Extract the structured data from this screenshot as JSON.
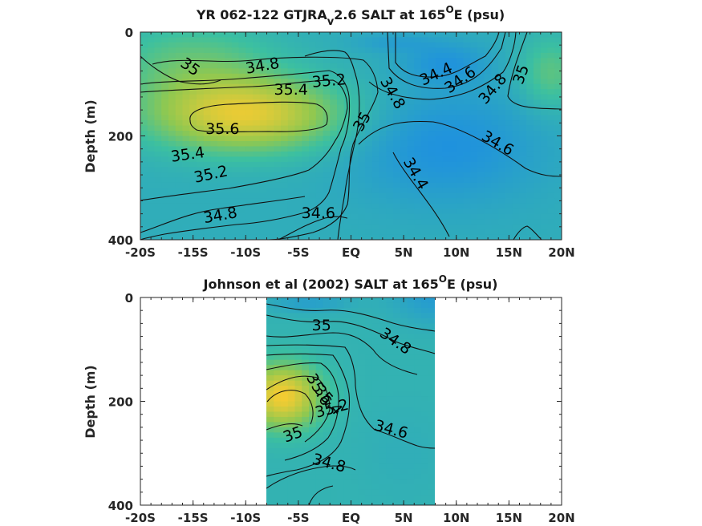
{
  "colors": {
    "fresh": "#1E90E0",
    "mid": "#3CC0A0",
    "salty": "#F8CC30",
    "line": "#111111",
    "frame": "#262626"
  },
  "chart_data": [
    {
      "type": "contour",
      "title_main": "YR 062-122 GTJRA",
      "title_sub": "v",
      "title_rest": "2.6 SALT at 165",
      "title_sup": "O",
      "title_end": "E (psu)",
      "ylabel": "Depth (m)",
      "xlim": [
        -20,
        20
      ],
      "ylim": [
        0,
        400
      ],
      "xticks": [
        {
          "v": -20,
          "label": "-20S"
        },
        {
          "v": -15,
          "label": "-15S"
        },
        {
          "v": -10,
          "label": "-10S"
        },
        {
          "v": -5,
          "label": "-5S"
        },
        {
          "v": 0,
          "label": "EQ"
        },
        {
          "v": 5,
          "label": "5N"
        },
        {
          "v": 10,
          "label": "10N"
        },
        {
          "v": 15,
          "label": "15N"
        },
        {
          "v": 20,
          "label": "20N"
        }
      ],
      "yticks": [
        {
          "v": 0,
          "label": "0"
        },
        {
          "v": 200,
          "label": "200"
        },
        {
          "v": 400,
          "label": "400"
        }
      ],
      "data_extent_x": [
        -20,
        20
      ],
      "field_range": [
        34.3,
        35.7
      ],
      "contour_levels": [
        34.4,
        34.6,
        34.8,
        35,
        35.2,
        35.4,
        35.6
      ],
      "contour_labels": [
        {
          "text": "35",
          "x": -15.3,
          "y": 68,
          "rot": 35
        },
        {
          "text": "34.8",
          "x": -8.4,
          "y": 66,
          "rot": -10
        },
        {
          "text": "35.4",
          "x": -5.7,
          "y": 112,
          "rot": 0
        },
        {
          "text": "35.2",
          "x": -2.1,
          "y": 95,
          "rot": -5
        },
        {
          "text": "34.8",
          "x": 3.9,
          "y": 118,
          "rot": 60
        },
        {
          "text": "35",
          "x": 1.1,
          "y": 173,
          "rot": -60
        },
        {
          "text": "34.4",
          "x": 8.1,
          "y": 82,
          "rot": -25
        },
        {
          "text": "34.6",
          "x": 10.4,
          "y": 93,
          "rot": -35
        },
        {
          "text": "34.8",
          "x": 13.5,
          "y": 110,
          "rot": -50
        },
        {
          "text": "35",
          "x": 16.2,
          "y": 82,
          "rot": -70
        },
        {
          "text": "35.6",
          "x": -12.2,
          "y": 188,
          "rot": 0
        },
        {
          "text": "34.6",
          "x": 13.9,
          "y": 215,
          "rot": 30
        },
        {
          "text": "35.4",
          "x": -15.5,
          "y": 237,
          "rot": -8
        },
        {
          "text": "35.2",
          "x": -13.3,
          "y": 275,
          "rot": -12
        },
        {
          "text": "34.4",
          "x": 6.1,
          "y": 273,
          "rot": 60
        },
        {
          "text": "34.8",
          "x": -12.4,
          "y": 354,
          "rot": -10
        },
        {
          "text": "34.6",
          "x": -3.1,
          "y": 350,
          "rot": 0
        }
      ]
    },
    {
      "type": "contour",
      "title_main": "Johnson et al (2002) SALT at 165",
      "title_sup": "O",
      "title_end": "E (psu)",
      "ylabel": "Depth (m)",
      "xlim": [
        -20,
        20
      ],
      "ylim": [
        0,
        400
      ],
      "xticks": [
        {
          "v": -20,
          "label": "-20S"
        },
        {
          "v": -15,
          "label": "-15S"
        },
        {
          "v": -10,
          "label": "-10S"
        },
        {
          "v": -5,
          "label": "-5S"
        },
        {
          "v": 0,
          "label": "EQ"
        },
        {
          "v": 5,
          "label": "5N"
        },
        {
          "v": 10,
          "label": "10N"
        },
        {
          "v": 15,
          "label": "15N"
        },
        {
          "v": 20,
          "label": "20N"
        }
      ],
      "yticks": [
        {
          "v": 0,
          "label": "0"
        },
        {
          "v": 200,
          "label": "200"
        },
        {
          "v": 400,
          "label": "400"
        }
      ],
      "data_extent_x": [
        -8,
        8
      ],
      "field_range": [
        34.3,
        35.7
      ],
      "contour_levels": [
        34.4,
        34.6,
        34.8,
        35,
        35.2,
        35.4,
        35.6
      ],
      "contour_labels": [
        {
          "text": "35",
          "x": -2.8,
          "y": 55,
          "rot": 0
        },
        {
          "text": "34.8",
          "x": 4.2,
          "y": 85,
          "rot": 35
        },
        {
          "text": "35.6",
          "x": -3.1,
          "y": 178,
          "rot": 60
        },
        {
          "text": "35.4",
          "x": -2.2,
          "y": 198,
          "rot": 50
        },
        {
          "text": "35.2",
          "x": -1.8,
          "y": 215,
          "rot": -15
        },
        {
          "text": "35",
          "x": -5.5,
          "y": 265,
          "rot": -20
        },
        {
          "text": "34.6",
          "x": 3.8,
          "y": 255,
          "rot": 15
        },
        {
          "text": "34.8",
          "x": -2.1,
          "y": 320,
          "rot": 15
        }
      ]
    }
  ]
}
